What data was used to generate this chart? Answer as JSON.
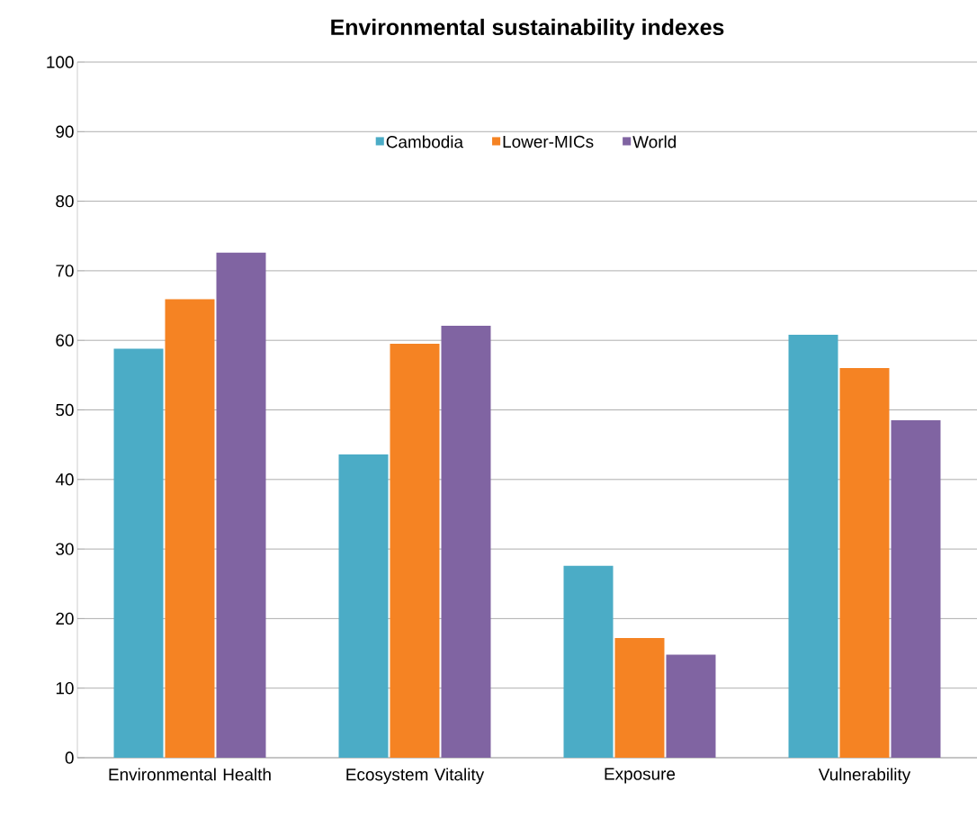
{
  "chart_data": {
    "type": "bar",
    "title": "Environmental sustainability indexes",
    "categories": [
      "Environmental Health",
      "Ecosystem Vitality",
      "Exposure",
      "Vulnerability"
    ],
    "series": [
      {
        "name": "Cambodia",
        "color": "#4bacc6",
        "values": [
          58.8,
          43.6,
          27.6,
          60.8
        ]
      },
      {
        "name": "Lower-MICs",
        "color": "#f58323",
        "values": [
          65.9,
          59.5,
          17.2,
          56.0
        ]
      },
      {
        "name": "World",
        "color": "#8064a2",
        "values": [
          72.6,
          62.1,
          14.8,
          48.5
        ]
      }
    ],
    "ylim": [
      0,
      100
    ],
    "yticks": [
      0,
      10,
      20,
      30,
      40,
      50,
      60,
      70,
      80,
      90,
      100
    ],
    "grid": "y",
    "legend": "top"
  }
}
